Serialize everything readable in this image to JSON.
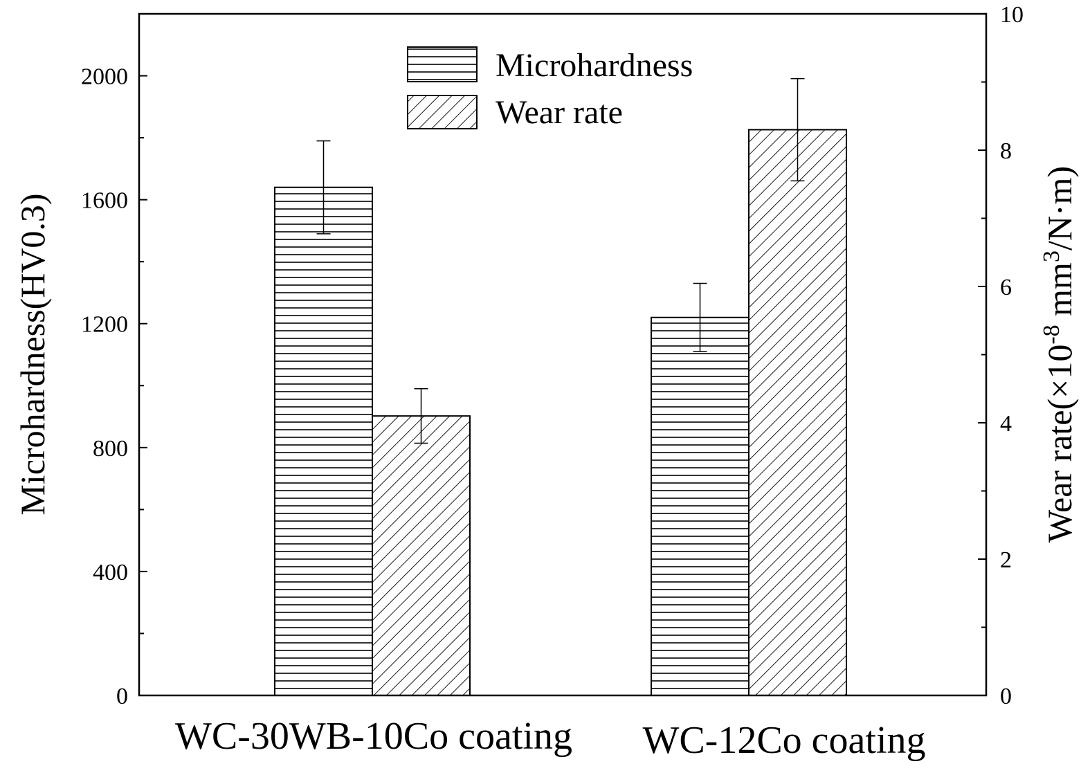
{
  "chart_data": {
    "type": "bar",
    "categories": [
      "WC-30WB-10Co coating",
      "WC-12Co coating"
    ],
    "series": [
      {
        "name": "Microhardness",
        "axis": "left",
        "pattern": "horizontal-lines",
        "values": [
          1640,
          1220
        ],
        "errors": [
          150,
          110
        ]
      },
      {
        "name": "Wear rate",
        "axis": "right",
        "pattern": "diagonal-lines",
        "values": [
          4.1,
          8.3
        ],
        "errors": [
          0.4,
          0.75
        ]
      }
    ],
    "y_left": {
      "label": "Microhardness(HV0.3)",
      "lim": [
        0,
        2200
      ],
      "ticks": [
        "0",
        "400",
        "800",
        "1200",
        "1600",
        "2000"
      ]
    },
    "y_right": {
      "label_prefix": "Wear rate(×10",
      "label_exp1": "-8",
      "label_mid": " mm",
      "label_exp2": "3",
      "label_suffix": "/N·m)",
      "lim": [
        0,
        10
      ],
      "ticks": [
        "0",
        "2",
        "4",
        "6",
        "8",
        "10"
      ]
    },
    "grid": false,
    "legend_position": "top-center",
    "colors": {
      "bar_fill": "#ffffff",
      "stroke": "#000000"
    }
  }
}
